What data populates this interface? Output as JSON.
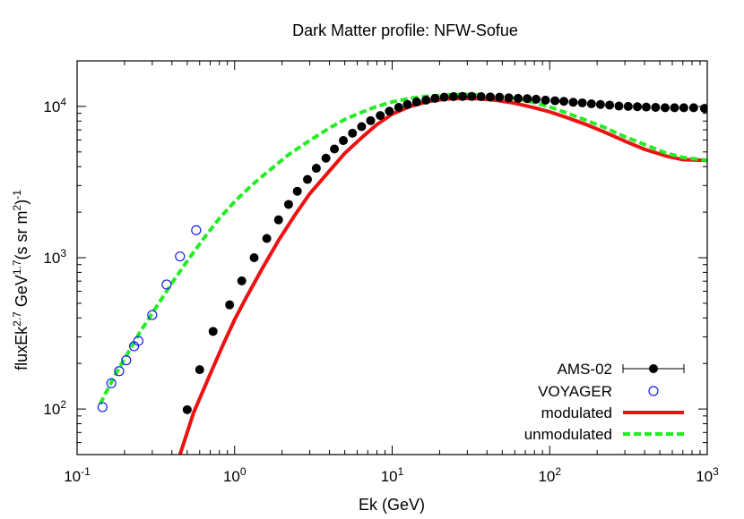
{
  "chart_data": {
    "type": "scatter",
    "title": "Dark Matter profile: NFW-Sofue",
    "xlabel": "Ek (GeV)",
    "ylabel_parts": [
      "fluxEk",
      "2.7",
      " GeV",
      "1.7",
      "(s sr m",
      "2",
      ")",
      "-1"
    ],
    "xscale": "log",
    "yscale": "log",
    "xlim": [
      0.1,
      1000
    ],
    "ylim": [
      50,
      20000
    ],
    "grid": false,
    "legend_position": "bottom-right",
    "x_ticks": [
      {
        "value": 0.1,
        "base": "10",
        "exp": "-1"
      },
      {
        "value": 1,
        "base": "10",
        "exp": "0"
      },
      {
        "value": 10,
        "base": "10",
        "exp": "1"
      },
      {
        "value": 100,
        "base": "10",
        "exp": "2"
      },
      {
        "value": 1000,
        "base": "10",
        "exp": "3"
      }
    ],
    "y_ticks": [
      {
        "value": 100,
        "base": "10",
        "exp": "2"
      },
      {
        "value": 1000,
        "base": "10",
        "exp": "3"
      },
      {
        "value": 10000,
        "base": "10",
        "exp": "4"
      }
    ],
    "series": [
      {
        "name": "AMS-02",
        "kind": "points",
        "marker": "filled-circle",
        "color": "#000000",
        "x": [
          0.5,
          0.6,
          0.73,
          0.93,
          1.11,
          1.33,
          1.6,
          1.9,
          2.2,
          2.5,
          2.9,
          3.3,
          3.8,
          4.3,
          4.9,
          5.6,
          6.4,
          7.3,
          8.4,
          9.6,
          11,
          12.5,
          14.3,
          16.4,
          18.7,
          21.4,
          24.5,
          28,
          32,
          36.7,
          42,
          48,
          55,
          63,
          72,
          82,
          94,
          108,
          123,
          141,
          161,
          184,
          210,
          240,
          275,
          315,
          360,
          410,
          470,
          540,
          620,
          710,
          820,
          960
        ],
        "y": [
          99,
          182,
          326,
          488,
          703,
          1000,
          1340,
          1780,
          2250,
          2750,
          3290,
          3900,
          4550,
          5230,
          5950,
          6650,
          7350,
          8050,
          8700,
          9300,
          9850,
          10300,
          10700,
          11000,
          11300,
          11500,
          11600,
          11650,
          11650,
          11600,
          11550,
          11500,
          11400,
          11300,
          11250,
          11150,
          11000,
          10900,
          10800,
          10650,
          10550,
          10400,
          10300,
          10200,
          10050,
          10000,
          9950,
          9900,
          9850,
          9800,
          9800,
          9800,
          9800,
          9700
        ]
      },
      {
        "name": "VOYAGER",
        "kind": "points",
        "marker": "open-circle",
        "color": "#1a1aee",
        "x": [
          0.145,
          0.165,
          0.185,
          0.205,
          0.23,
          0.245,
          0.3,
          0.37,
          0.45,
          0.57
        ],
        "y": [
          103,
          148,
          178,
          210,
          260,
          282,
          418,
          665,
          1020,
          1520
        ]
      },
      {
        "name": "modulated",
        "kind": "line",
        "dash": "solid",
        "color": "#ee1111",
        "x": [
          0.45,
          0.55,
          0.7,
          0.85,
          1,
          1.2,
          1.5,
          1.9,
          2.4,
          3,
          4,
          5,
          6.5,
          8,
          10,
          13,
          17,
          22,
          28,
          35,
          45,
          60,
          80,
          100,
          130,
          170,
          220,
          300,
          400,
          550,
          700,
          1000
        ],
        "y": [
          50,
          95,
          170,
          270,
          390,
          560,
          850,
          1300,
          1900,
          2650,
          3750,
          4900,
          6300,
          7600,
          8900,
          10000,
          10800,
          11200,
          11300,
          11250,
          11000,
          10500,
          9800,
          9200,
          8400,
          7600,
          6800,
          5900,
          5200,
          4700,
          4450,
          4400
        ]
      },
      {
        "name": "unmodulated",
        "kind": "line",
        "dash": "dashed",
        "color": "#22ee22",
        "x": [
          0.14,
          0.17,
          0.2,
          0.25,
          0.3,
          0.4,
          0.5,
          0.65,
          0.8,
          1,
          1.3,
          1.7,
          2.2,
          3,
          4,
          5,
          6.5,
          8,
          10,
          13,
          17,
          22,
          28,
          35,
          45,
          60,
          80,
          100,
          130,
          170,
          220,
          300,
          400,
          550,
          700,
          1000
        ],
        "y": [
          108,
          160,
          215,
          320,
          430,
          680,
          950,
          1380,
          1820,
          2350,
          3050,
          3850,
          4800,
          5950,
          7200,
          8200,
          9200,
          10000,
          10700,
          11300,
          11700,
          11900,
          12000,
          11900,
          11700,
          11300,
          10600,
          9900,
          9000,
          8100,
          7300,
          6300,
          5600,
          4900,
          4600,
          4400
        ]
      }
    ]
  }
}
